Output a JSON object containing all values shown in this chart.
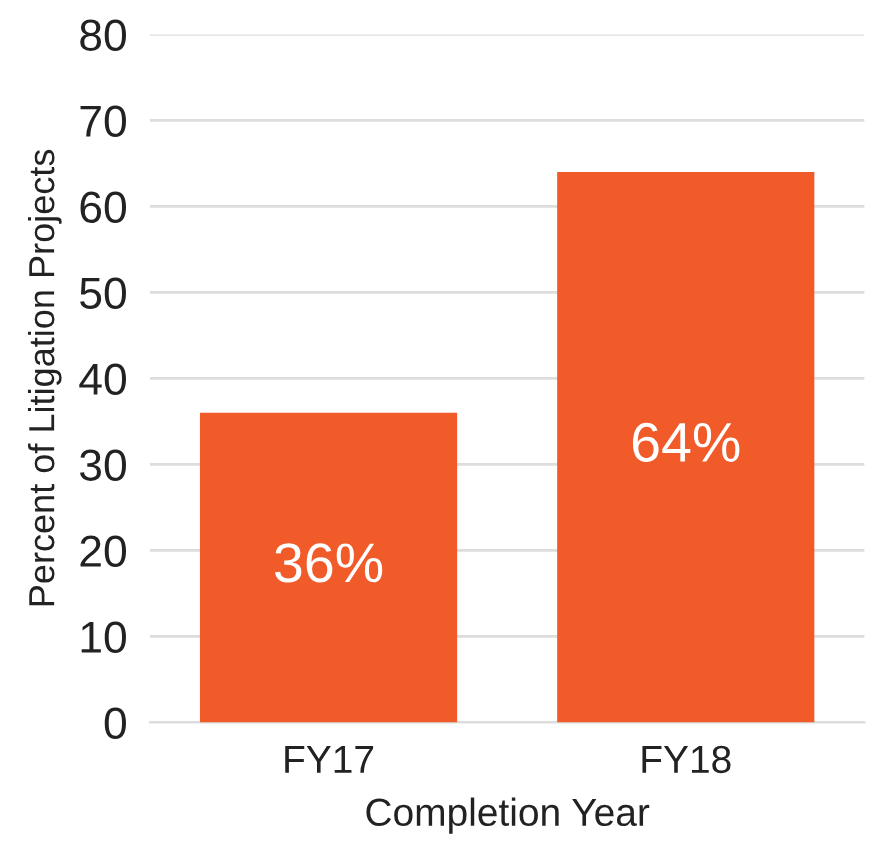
{
  "chart_data": {
    "type": "bar",
    "xlabel": "Completion Year",
    "ylabel": "Percent of Litigation Projects",
    "categories": [
      "FY17",
      "FY18"
    ],
    "values": [
      36,
      64
    ],
    "value_labels": [
      "36%",
      "64%"
    ],
    "color": "#f15a29",
    "ylim": [
      0,
      80
    ],
    "yticks": [
      0,
      10,
      20,
      30,
      40,
      50,
      60,
      70,
      80
    ],
    "grid": "y"
  }
}
